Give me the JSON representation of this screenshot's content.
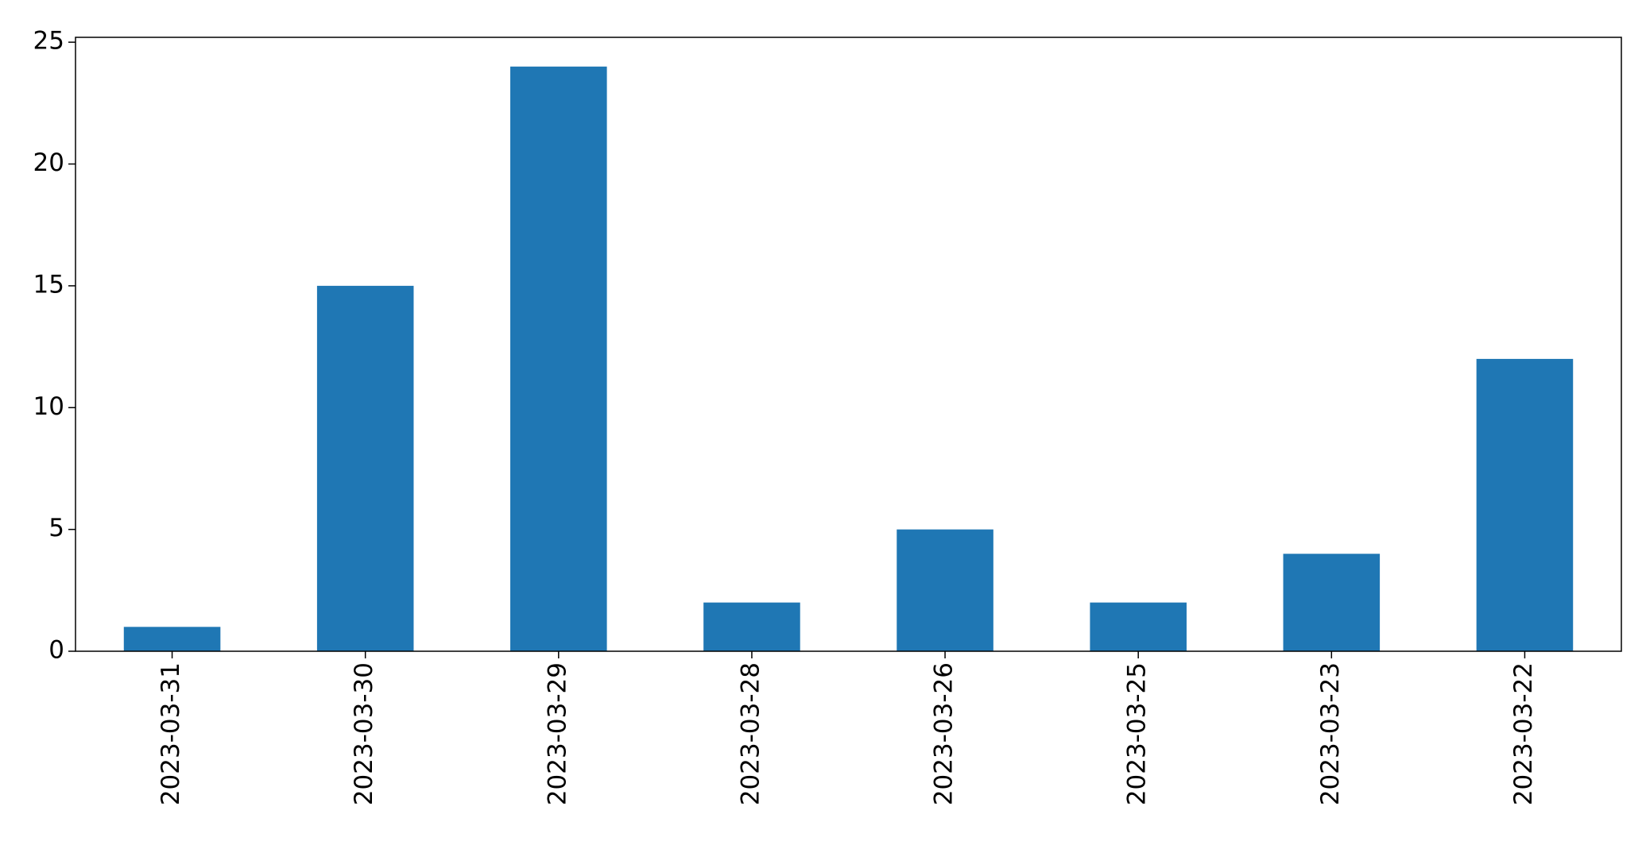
{
  "chart_data": {
    "type": "bar",
    "title": "",
    "xlabel": "",
    "ylabel": "",
    "categories": [
      "2023-03-31",
      "2023-03-30",
      "2023-03-29",
      "2023-03-28",
      "2023-03-26",
      "2023-03-25",
      "2023-03-23",
      "2023-03-22"
    ],
    "values": [
      1,
      15,
      24,
      2,
      5,
      2,
      4,
      12
    ],
    "ylim": [
      0,
      25.2
    ],
    "yticks": [
      0,
      5,
      10,
      15,
      20,
      25
    ],
    "grid": false,
    "bar_color": "#1f77b4"
  }
}
